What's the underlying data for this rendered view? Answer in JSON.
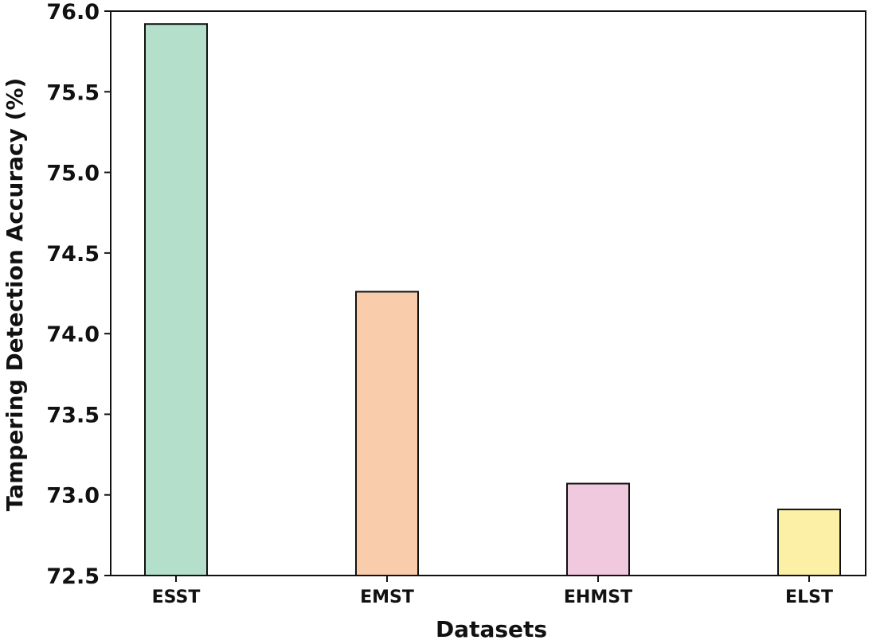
{
  "chart_data": {
    "type": "bar",
    "title": "",
    "xlabel": "Datasets",
    "ylabel": "Tampering Detection Accuracy (%)",
    "categories": [
      "ESST",
      "EMST",
      "EHMST",
      "ELST"
    ],
    "values": [
      75.92,
      74.26,
      73.07,
      72.91
    ],
    "colors": [
      "#b3dfcb",
      "#f9cdab",
      "#f1c9df",
      "#fbf0a6"
    ],
    "edge_color": "#111111",
    "ylim": [
      72.5,
      76.0
    ],
    "yticks": [
      "72.5",
      "73.0",
      "73.5",
      "74.0",
      "74.5",
      "75.0",
      "75.5",
      "76.0"
    ],
    "grid": false,
    "legend": "none"
  }
}
